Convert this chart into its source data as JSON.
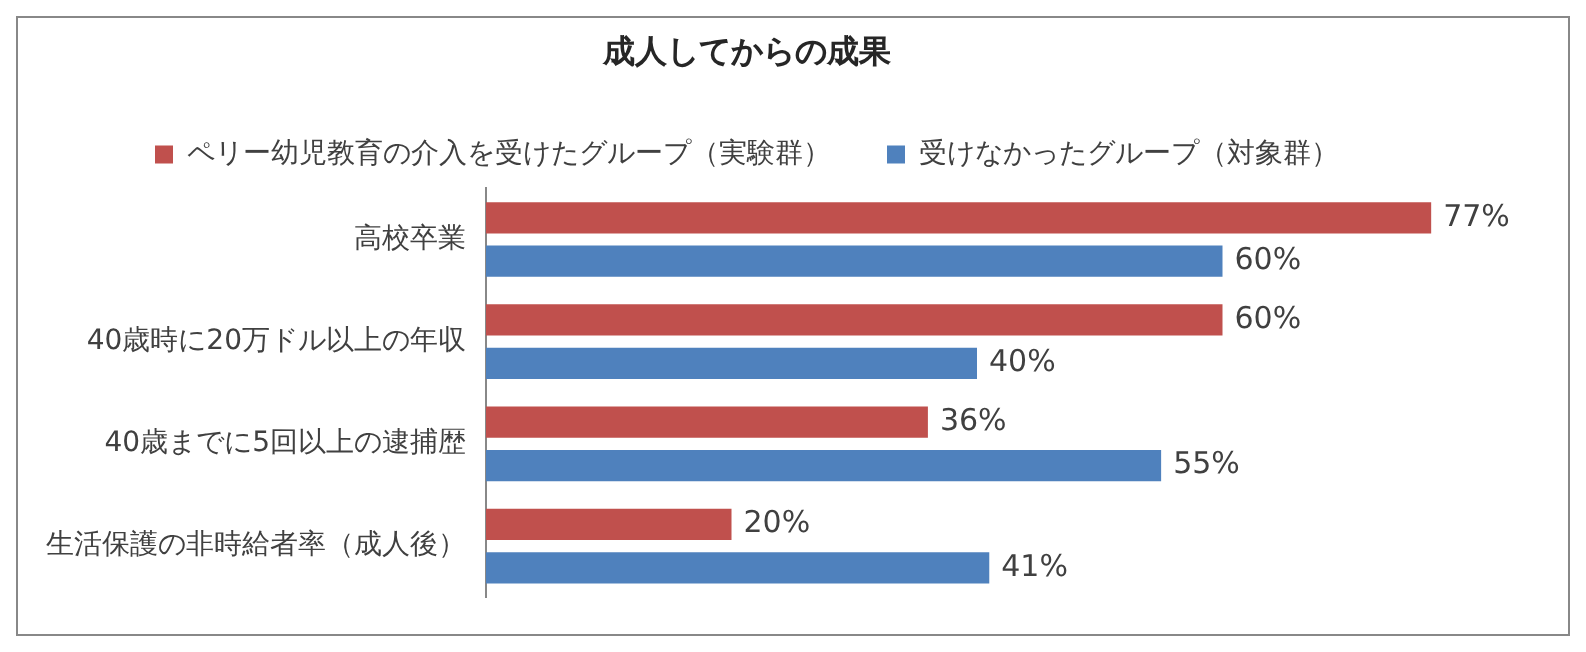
{
  "chart_data": {
    "type": "bar",
    "orientation": "horizontal",
    "title": "成人してからの成果",
    "categories": [
      "高校卒業",
      "40歳時に20万ドル以上の年収",
      "40歳までに5回以上の逮捕歴",
      "生活保護の非時給者率（成人後）"
    ],
    "series": [
      {
        "name": "ペリー幼児教育の介入を受けたグループ（実験群）",
        "color": "#c0504d",
        "values": [
          77,
          60,
          36,
          20
        ],
        "value_labels": [
          "77%",
          "60%",
          "36%",
          "20%"
        ]
      },
      {
        "name": "受けなかったグループ（対象群）",
        "color": "#4f81bd",
        "values": [
          60,
          40,
          55,
          41
        ],
        "value_labels": [
          "60%",
          "40%",
          "55%",
          "41%"
        ]
      }
    ],
    "legend": "top",
    "grid": false
  }
}
